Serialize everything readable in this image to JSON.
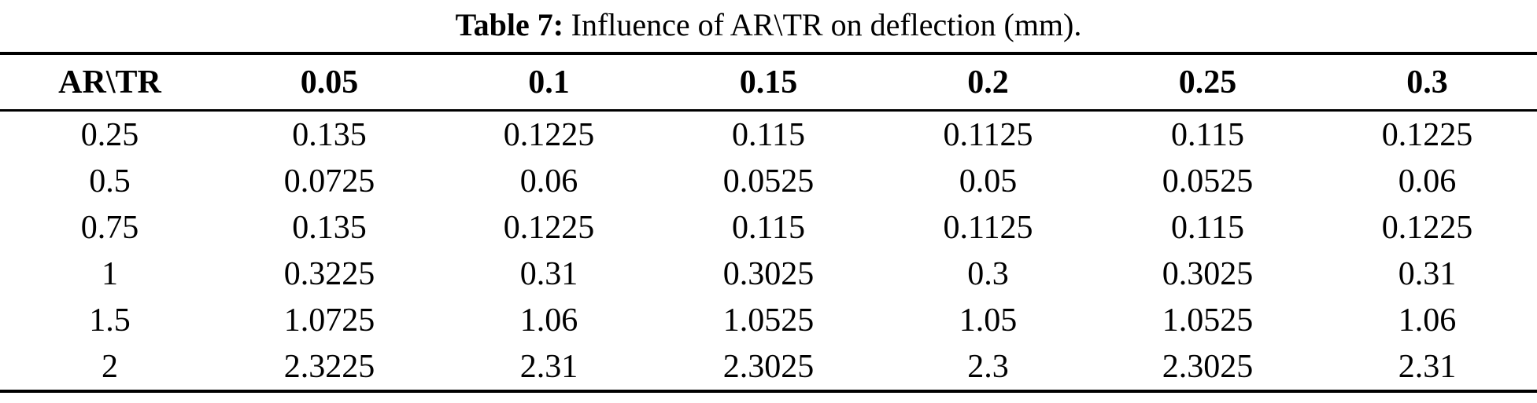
{
  "caption": {
    "label": "Table 7:",
    "text": "Influence of AR\\TR on deflection (mm)."
  },
  "table": {
    "header": [
      "AR\\TR",
      "0.05",
      "0.1",
      "0.15",
      "0.2",
      "0.25",
      "0.3"
    ],
    "rows": [
      [
        "0.25",
        "0.135",
        "0.1225",
        "0.115",
        "0.1125",
        "0.115",
        "0.1225"
      ],
      [
        "0.5",
        "0.0725",
        "0.06",
        "0.0525",
        "0.05",
        "0.0525",
        "0.06"
      ],
      [
        "0.75",
        "0.135",
        "0.1225",
        "0.115",
        "0.1125",
        "0.115",
        "0.1225"
      ],
      [
        "1",
        "0.3225",
        "0.31",
        "0.3025",
        "0.3",
        "0.3025",
        "0.31"
      ],
      [
        "1.5",
        "1.0725",
        "1.06",
        "1.0525",
        "1.05",
        "1.0525",
        "1.06"
      ],
      [
        "2",
        "2.3225",
        "2.31",
        "2.3025",
        "2.3",
        "2.3025",
        "2.31"
      ]
    ]
  },
  "colors": {
    "text": "#000000",
    "background": "#ffffff",
    "rule": "#000000"
  }
}
